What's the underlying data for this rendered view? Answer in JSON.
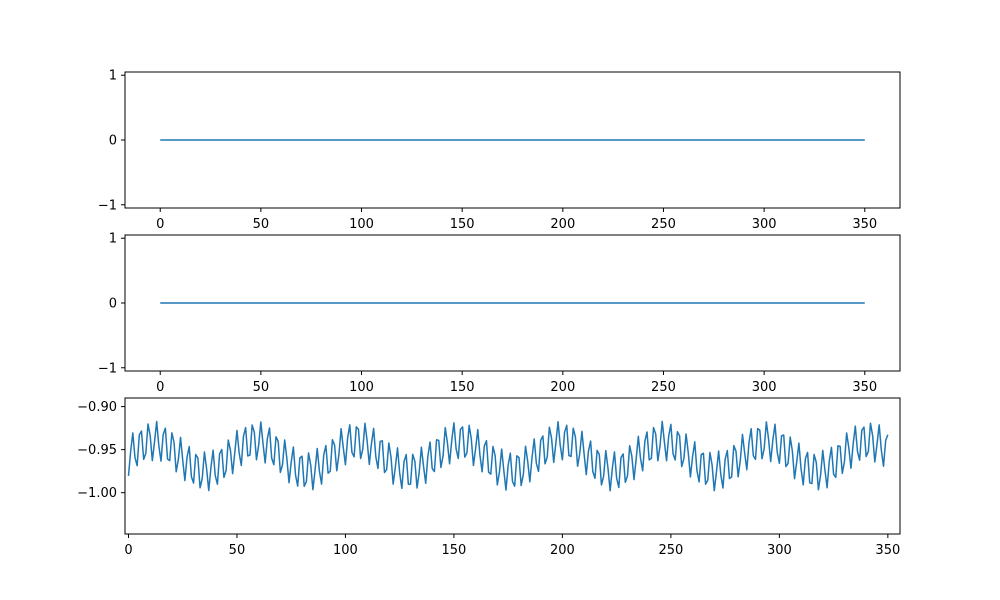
{
  "chart_data": [
    {
      "type": "line",
      "title": "",
      "xlabel": "",
      "ylabel": "",
      "xlim": [
        -17.5,
        367.5
      ],
      "ylim": [
        -1.05,
        1.05
      ],
      "x_ticks": [
        0,
        50,
        100,
        150,
        200,
        250,
        300,
        350
      ],
      "x_tick_labels": [
        "0",
        "50",
        "100",
        "150",
        "200",
        "250",
        "300",
        "350"
      ],
      "y_ticks": [
        -1,
        0,
        1
      ],
      "y_tick_labels": [
        "−1",
        "0",
        "1"
      ],
      "grid": false,
      "color": "#1f77b4",
      "series": [
        {
          "x": [
            0,
            350
          ],
          "y": [
            0,
            0
          ]
        }
      ]
    },
    {
      "type": "line",
      "title": "",
      "xlabel": "",
      "ylabel": "",
      "xlim": [
        -17.5,
        367.5
      ],
      "ylim": [
        -1.05,
        1.05
      ],
      "x_ticks": [
        0,
        50,
        100,
        150,
        200,
        250,
        300,
        350
      ],
      "x_tick_labels": [
        "0",
        "50",
        "100",
        "150",
        "200",
        "250",
        "300",
        "350"
      ],
      "y_ticks": [
        -1,
        0,
        1
      ],
      "y_tick_labels": [
        "−1",
        "0",
        "1"
      ],
      "grid": false,
      "color": "#1f77b4",
      "series": [
        {
          "x": [
            0,
            350
          ],
          "y": [
            0,
            0
          ]
        }
      ]
    },
    {
      "type": "line",
      "title": "",
      "xlabel": "",
      "ylabel": "",
      "xlim": [
        -1.6,
        355.6
      ],
      "ylim": [
        -1.048,
        -0.89
      ],
      "x_ticks": [
        0,
        50,
        100,
        150,
        200,
        250,
        300,
        350
      ],
      "x_tick_labels": [
        "0",
        "50",
        "100",
        "150",
        "200",
        "250",
        "300",
        "350"
      ],
      "y_ticks": [
        -1.0,
        -0.95,
        -0.9
      ],
      "y_tick_labels": [
        "−1.00",
        "−0.95",
        "−0.90"
      ],
      "grid": false,
      "color": "#1f77b4",
      "signal": {
        "x_start": 0,
        "x_end": 350,
        "x_step": 1,
        "offset": -0.9575,
        "slow_amplitude": 0.0175,
        "slow_period": 47,
        "fast_amplitude": 0.023,
        "fast_period": 3.7,
        "fast_phase": -1.5708
      }
    }
  ]
}
